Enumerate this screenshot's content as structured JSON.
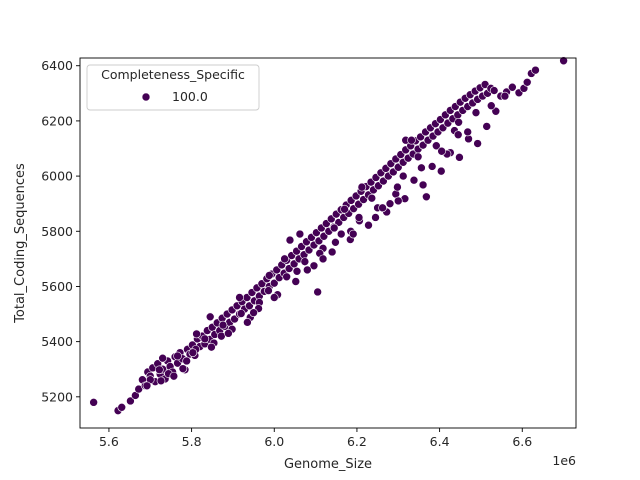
{
  "chart_data": {
    "type": "scatter",
    "title": "",
    "xlabel": "Genome_Size",
    "ylabel": "Total_Coding_Sequences",
    "x_offset_label": "1e6",
    "xlim": [
      5.53,
      6.73
    ],
    "ylim": [
      5087,
      6428
    ],
    "xticks": [
      5.6,
      5.8,
      6.0,
      6.2,
      6.4,
      6.6
    ],
    "xtick_labels": [
      "5.6",
      "5.8",
      "6.0",
      "6.2",
      "6.4",
      "6.6"
    ],
    "yticks": [
      5200,
      5400,
      5600,
      5800,
      6000,
      6200,
      6400
    ],
    "ytick_labels": [
      "5200",
      "5400",
      "5600",
      "5800",
      "6000",
      "6200",
      "6400"
    ],
    "grid": false,
    "legend": {
      "title": "Completeness_Specific",
      "placement": "top-left",
      "entries": [
        {
          "label": "100.0",
          "color": "#440154"
        }
      ]
    },
    "marker_color": "#440154",
    "marker_edge": "#ffffff",
    "series": [
      {
        "name": "100.0",
        "points": [
          [
            5.563,
            5180
          ],
          [
            5.622,
            5150
          ],
          [
            5.631,
            5162
          ],
          [
            5.652,
            5185
          ],
          [
            5.664,
            5205
          ],
          [
            5.672,
            5228
          ],
          [
            5.681,
            5262
          ],
          [
            5.688,
            5240
          ],
          [
            5.694,
            5290
          ],
          [
            5.7,
            5275
          ],
          [
            5.706,
            5305
          ],
          [
            5.712,
            5255
          ],
          [
            5.718,
            5320
          ],
          [
            5.724,
            5282
          ],
          [
            5.73,
            5300
          ],
          [
            5.736,
            5265
          ],
          [
            5.742,
            5330
          ],
          [
            5.748,
            5310
          ],
          [
            5.754,
            5290
          ],
          [
            5.76,
            5345
          ],
          [
            5.766,
            5322
          ],
          [
            5.772,
            5360
          ],
          [
            5.778,
            5338
          ],
          [
            5.784,
            5298
          ],
          [
            5.79,
            5372
          ],
          [
            5.796,
            5355
          ],
          [
            5.802,
            5388
          ],
          [
            5.808,
            5350
          ],
          [
            5.814,
            5410
          ],
          [
            5.82,
            5382
          ],
          [
            5.826,
            5420
          ],
          [
            5.832,
            5392
          ],
          [
            5.838,
            5440
          ],
          [
            5.844,
            5408
          ],
          [
            5.85,
            5452
          ],
          [
            5.856,
            5426
          ],
          [
            5.862,
            5468
          ],
          [
            5.868,
            5440
          ],
          [
            5.874,
            5485
          ],
          [
            5.88,
            5455
          ],
          [
            5.886,
            5500
          ],
          [
            5.892,
            5470
          ],
          [
            5.898,
            5515
          ],
          [
            5.904,
            5482
          ],
          [
            5.91,
            5530
          ],
          [
            5.916,
            5500
          ],
          [
            5.922,
            5545
          ],
          [
            5.928,
            5518
          ],
          [
            5.934,
            5560
          ],
          [
            5.94,
            5530
          ],
          [
            5.946,
            5578
          ],
          [
            5.952,
            5548
          ],
          [
            5.958,
            5595
          ],
          [
            5.964,
            5565
          ],
          [
            5.97,
            5610
          ],
          [
            5.976,
            5582
          ],
          [
            5.982,
            5628
          ],
          [
            5.988,
            5600
          ],
          [
            5.994,
            5645
          ],
          [
            6.0,
            5612
          ],
          [
            6.006,
            5660
          ],
          [
            6.012,
            5632
          ],
          [
            6.018,
            5678
          ],
          [
            6.024,
            5648
          ],
          [
            6.03,
            5695
          ],
          [
            6.036,
            5665
          ],
          [
            6.042,
            5712
          ],
          [
            6.048,
            5682
          ],
          [
            6.054,
            5728
          ],
          [
            6.06,
            5700
          ],
          [
            6.066,
            5745
          ],
          [
            6.072,
            5715
          ],
          [
            6.078,
            5762
          ],
          [
            6.084,
            5732
          ],
          [
            6.09,
            5778
          ],
          [
            6.096,
            5750
          ],
          [
            6.102,
            5795
          ],
          [
            6.108,
            5765
          ],
          [
            6.114,
            5812
          ],
          [
            6.12,
            5782
          ],
          [
            6.126,
            5828
          ],
          [
            6.132,
            5800
          ],
          [
            6.138,
            5845
          ],
          [
            6.144,
            5815
          ],
          [
            6.15,
            5862
          ],
          [
            6.156,
            5832
          ],
          [
            6.162,
            5878
          ],
          [
            6.168,
            5850
          ],
          [
            6.174,
            5895
          ],
          [
            6.18,
            5865
          ],
          [
            6.186,
            5912
          ],
          [
            6.192,
            5882
          ],
          [
            6.198,
            5928
          ],
          [
            6.204,
            5898
          ],
          [
            6.21,
            5945
          ],
          [
            6.216,
            5915
          ],
          [
            6.222,
            5962
          ],
          [
            6.228,
            5932
          ],
          [
            6.234,
            5978
          ],
          [
            6.24,
            5950
          ],
          [
            6.246,
            5995
          ],
          [
            6.252,
            5965
          ],
          [
            6.258,
            6012
          ],
          [
            6.264,
            5982
          ],
          [
            6.27,
            6028
          ],
          [
            6.276,
            6000
          ],
          [
            6.282,
            6045
          ],
          [
            6.288,
            6015
          ],
          [
            6.294,
            6062
          ],
          [
            6.3,
            6032
          ],
          [
            6.306,
            6078
          ],
          [
            6.312,
            6050
          ],
          [
            6.318,
            6095
          ],
          [
            6.324,
            6065
          ],
          [
            6.33,
            6110
          ],
          [
            6.336,
            6080
          ],
          [
            6.342,
            6128
          ],
          [
            6.348,
            6098
          ],
          [
            6.354,
            6142
          ],
          [
            6.36,
            6112
          ],
          [
            6.366,
            6160
          ],
          [
            6.372,
            6130
          ],
          [
            6.378,
            6175
          ],
          [
            6.384,
            6145
          ],
          [
            6.39,
            6190
          ],
          [
            6.396,
            6160
          ],
          [
            6.402,
            6205
          ],
          [
            6.408,
            6175
          ],
          [
            6.414,
            6222
          ],
          [
            6.42,
            6192
          ],
          [
            6.426,
            6238
          ],
          [
            6.432,
            6208
          ],
          [
            6.438,
            6252
          ],
          [
            6.444,
            6222
          ],
          [
            6.45,
            6268
          ],
          [
            6.456,
            6238
          ],
          [
            6.462,
            6282
          ],
          [
            6.468,
            6252
          ],
          [
            6.474,
            6295
          ],
          [
            6.48,
            6265
          ],
          [
            6.486,
            6308
          ],
          [
            6.492,
            6278
          ],
          [
            6.498,
            6320
          ],
          [
            6.504,
            6290
          ],
          [
            6.51,
            6332
          ],
          [
            6.516,
            6300
          ],
          [
            6.524,
            6318
          ],
          [
            6.532,
            6310
          ],
          [
            6.548,
            6290
          ],
          [
            6.562,
            6305
          ],
          [
            6.576,
            6322
          ],
          [
            6.592,
            6302
          ],
          [
            6.604,
            6318
          ],
          [
            6.612,
            6340
          ],
          [
            6.622,
            6372
          ],
          [
            6.632,
            6384
          ],
          [
            6.7,
            6418
          ],
          [
            5.7,
            5262
          ],
          [
            5.722,
            5298
          ],
          [
            5.744,
            5284
          ],
          [
            5.766,
            5348
          ],
          [
            5.788,
            5330
          ],
          [
            5.81,
            5372
          ],
          [
            5.832,
            5410
          ],
          [
            5.854,
            5395
          ],
          [
            5.876,
            5460
          ],
          [
            5.898,
            5445
          ],
          [
            5.92,
            5502
          ],
          [
            5.942,
            5488
          ],
          [
            5.964,
            5542
          ],
          [
            5.986,
            5585
          ],
          [
            6.008,
            5570
          ],
          [
            6.03,
            5635
          ],
          [
            6.052,
            5618
          ],
          [
            6.074,
            5690
          ],
          [
            6.096,
            5675
          ],
          [
            6.118,
            5738
          ],
          [
            6.14,
            5725
          ],
          [
            6.162,
            5790
          ],
          [
            6.184,
            5770
          ],
          [
            6.206,
            5838
          ],
          [
            6.228,
            5822
          ],
          [
            6.25,
            5885
          ],
          [
            6.272,
            5870
          ],
          [
            6.294,
            5935
          ],
          [
            6.316,
            5918
          ],
          [
            6.338,
            5985
          ],
          [
            6.36,
            5968
          ],
          [
            6.382,
            6035
          ],
          [
            6.404,
            6018
          ],
          [
            6.426,
            6085
          ],
          [
            6.448,
            6068
          ],
          [
            6.47,
            6135
          ],
          [
            6.492,
            6118
          ],
          [
            6.514,
            6180
          ],
          [
            6.536,
            6235
          ],
          [
            5.73,
            5340
          ],
          [
            5.812,
            5428
          ],
          [
            5.848,
            5380
          ],
          [
            5.872,
            5420
          ],
          [
            5.935,
            5470
          ],
          [
            5.962,
            5520
          ],
          [
            6.0,
            5560
          ],
          [
            6.025,
            5700
          ],
          [
            6.038,
            5768
          ],
          [
            6.055,
            5655
          ],
          [
            6.062,
            5790
          ],
          [
            6.08,
            5660
          ],
          [
            6.11,
            5720
          ],
          [
            6.148,
            5760
          ],
          [
            6.17,
            5880
          ],
          [
            6.185,
            5800
          ],
          [
            6.205,
            5850
          ],
          [
            6.212,
            5960
          ],
          [
            6.236,
            5920
          ],
          [
            6.262,
            5885
          ],
          [
            6.28,
            5900
          ],
          [
            6.298,
            5960
          ],
          [
            6.318,
            6130
          ],
          [
            6.332,
            6130
          ],
          [
            6.356,
            6030
          ],
          [
            6.368,
            5925
          ],
          [
            6.392,
            6110
          ],
          [
            6.418,
            6080
          ],
          [
            6.436,
            6165
          ],
          [
            6.446,
            6195
          ],
          [
            6.468,
            6160
          ],
          [
            5.845,
            5490
          ],
          [
            5.916,
            5560
          ],
          [
            5.988,
            5640
          ],
          [
            6.105,
            5580
          ],
          [
            6.312,
            6000
          ],
          [
            6.348,
            6070
          ],
          [
            6.405,
            6090
          ],
          [
            6.445,
            6150
          ],
          [
            6.488,
            6230
          ],
          [
            6.525,
            6255
          ],
          [
            6.558,
            6290
          ],
          [
            6.145,
            5812
          ],
          [
            5.692,
            5240
          ],
          [
            5.779,
            5302
          ],
          [
            5.726,
            5258
          ],
          [
            5.757,
            5275
          ],
          [
            5.803,
            5360
          ],
          [
            5.889,
            5430
          ],
          [
            5.95,
            5505
          ],
          [
            6.118,
            5700
          ],
          [
            6.191,
            5790
          ],
          [
            6.245,
            5850
          ],
          [
            6.3,
            5910
          ]
        ]
      }
    ]
  }
}
